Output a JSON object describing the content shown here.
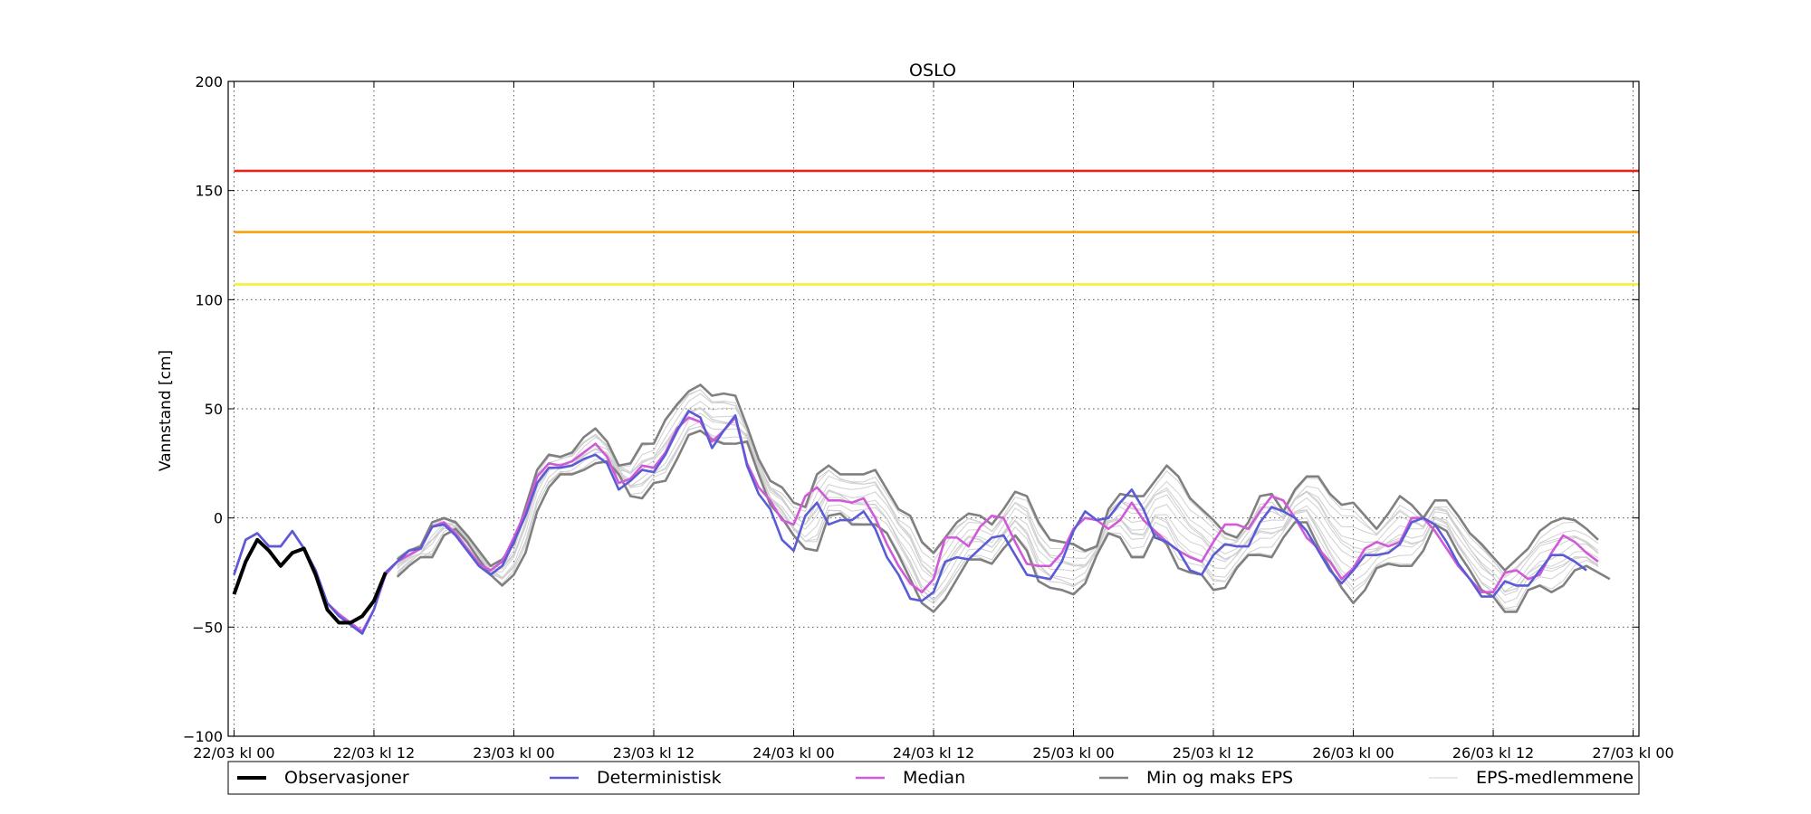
{
  "chart_data": {
    "type": "line",
    "title": "OSLO",
    "ylabel": "Vannstand [cm]",
    "xlabel": "",
    "ylim": [
      -100,
      200
    ],
    "xlim": [
      -0.5,
      120.5
    ],
    "x_unit": "hours since 22/03 kl 00",
    "yticks": [
      200,
      150,
      100,
      50,
      0,
      -50,
      -100
    ],
    "ytick_labels": [
      "200",
      "150",
      "100",
      "50",
      "0",
      "−50",
      "−100"
    ],
    "xticks": [
      0,
      12,
      24,
      36,
      48,
      60,
      72,
      84,
      96,
      108,
      120
    ],
    "xtick_labels": [
      "22/03 kl 00",
      "22/03 kl 12",
      "23/03 kl 00",
      "23/03 kl 12",
      "24/03 kl 00",
      "24/03 kl 12",
      "25/03 kl 00",
      "25/03 kl 12",
      "26/03 kl 00",
      "26/03 kl 12",
      "27/03 kl 00"
    ],
    "grid": true,
    "legend_position": "bottom",
    "thresholds": [
      {
        "value": 159,
        "color": "#e8231e"
      },
      {
        "value": 131,
        "color": "#f5a00c"
      },
      {
        "value": 107,
        "color": "#f5f032"
      }
    ],
    "series": [
      {
        "name": "Observasjoner",
        "color": "#000000",
        "x_start": 0,
        "values": [
          -35,
          -20,
          -10,
          -15,
          -22,
          -16,
          -14,
          -26,
          -42,
          -48,
          -48,
          -45,
          -38,
          -25
        ]
      },
      {
        "name": "Deterministisk",
        "color": "#5b5bd6",
        "x_start": 0,
        "values": [
          -26,
          -10,
          -7,
          -13,
          -13,
          -6,
          -14,
          -24,
          -39,
          -45,
          -49,
          -53,
          -42,
          -25,
          -20,
          -15,
          -14,
          -4,
          -3,
          -8,
          -15,
          -22,
          -26,
          -22,
          -11,
          1,
          16,
          23,
          23,
          24,
          27,
          29,
          25,
          13,
          17,
          22,
          21,
          29,
          40,
          49,
          46,
          32,
          40,
          47,
          24,
          11,
          4,
          -10,
          -15,
          1,
          7,
          -3,
          -1,
          -1,
          3,
          -5,
          -18,
          -26,
          -37,
          -38,
          -34,
          -20,
          -18,
          -19,
          -14,
          -9,
          -8,
          -17,
          -26,
          -27,
          -28,
          -20,
          -6,
          3,
          -1,
          0,
          7,
          13,
          4,
          -9,
          -11,
          -15,
          -24,
          -26,
          -17,
          -12,
          -13,
          -13,
          -2,
          5,
          3,
          0,
          -6,
          -15,
          -24,
          -30,
          -24,
          -17,
          -17,
          -16,
          -12,
          -2,
          0,
          -3,
          -11,
          -21,
          -28,
          -36,
          -36,
          -29,
          -31,
          -31,
          -24,
          -17,
          -17,
          -20,
          -24
        ]
      },
      {
        "name": "Median",
        "color": "#d05ad8",
        "x_start": 0,
        "values": [
          -26,
          -10,
          -7,
          -13,
          -13,
          -6,
          -14,
          -24,
          -39,
          -44,
          -48,
          -52,
          -42,
          -26,
          -20,
          -17,
          -14,
          -4,
          -2,
          -7,
          -14,
          -21,
          -24,
          -20,
          -9,
          3,
          19,
          25,
          24,
          26,
          30,
          34,
          28,
          16,
          18,
          24,
          23,
          30,
          41,
          46,
          44,
          35,
          40,
          46,
          25,
          14,
          8,
          -1,
          -3,
          10,
          14,
          8,
          8,
          7,
          9,
          0,
          -12,
          -22,
          -30,
          -34,
          -28,
          -9,
          -9,
          -13,
          -4,
          1,
          0,
          -11,
          -21,
          -22,
          -22,
          -16,
          -5,
          0,
          -1,
          -5,
          -1,
          7,
          -1,
          -6,
          -11,
          -15,
          -18,
          -20,
          -11,
          -3,
          -3,
          -5,
          3,
          10,
          8,
          0,
          -9,
          -14,
          -20,
          -28,
          -23,
          -14,
          -11,
          -13,
          -11,
          0,
          0,
          -6,
          -14,
          -22,
          -28,
          -34,
          -34,
          -25,
          -24,
          -28,
          -26,
          -16,
          -8,
          -11,
          -16,
          -20
        ]
      },
      {
        "name": "Min og maks EPS",
        "color": "#808080",
        "x_start": 14,
        "role": "max",
        "values": [
          -19,
          -15,
          -13,
          -2,
          0,
          -2,
          -8,
          -15,
          -22,
          -19,
          -12,
          5,
          22,
          29,
          28,
          30,
          37,
          41,
          35,
          24,
          25,
          34,
          34,
          45,
          52,
          58,
          61,
          56,
          57,
          56,
          42,
          27,
          17,
          14,
          7,
          5,
          20,
          24,
          20,
          20,
          20,
          22,
          13,
          4,
          1,
          -11,
          -16,
          -9,
          -2,
          2,
          1,
          -3,
          4,
          12,
          10,
          -2,
          -10,
          -11,
          -12,
          -15,
          -13,
          4,
          11,
          10,
          10,
          17,
          24,
          19,
          9,
          4,
          -1,
          -7,
          -9,
          -2,
          10,
          11,
          3,
          13,
          19,
          19,
          11,
          6,
          7,
          1,
          -5,
          2,
          10,
          6,
          0,
          8,
          8,
          1,
          -7,
          -12,
          -18,
          -24,
          -19,
          -14,
          -6,
          -2,
          0,
          -1,
          -5,
          -10
        ]
      },
      {
        "name": "Min og maks EPS",
        "color": "#808080",
        "x_start": 14,
        "role": "min",
        "values": [
          -27,
          -22,
          -18,
          -18,
          -8,
          -5,
          -11,
          -19,
          -26,
          -31,
          -26,
          -16,
          3,
          14,
          20,
          20,
          22,
          25,
          26,
          20,
          10,
          9,
          16,
          17,
          27,
          38,
          40,
          36,
          34,
          34,
          35,
          20,
          6,
          0,
          -8,
          -14,
          -15,
          1,
          2,
          -3,
          -3,
          -3,
          -7,
          -17,
          -28,
          -39,
          -43,
          -37,
          -28,
          -19,
          -19,
          -21,
          -14,
          -8,
          -15,
          -29,
          -32,
          -33,
          -35,
          -30,
          -17,
          -7,
          -9,
          -18,
          -18,
          -7,
          -12,
          -23,
          -25,
          -26,
          -33,
          -32,
          -23,
          -17,
          -17,
          -18,
          -9,
          -2,
          -2,
          -13,
          -23,
          -32,
          -39,
          -33,
          -23,
          -21,
          -22,
          -22,
          -15,
          -3,
          -6,
          -16,
          -24,
          -33,
          -36,
          -43,
          -43,
          -33,
          -31,
          -34,
          -31,
          -24,
          -22,
          -25,
          -28
        ]
      }
    ],
    "ensemble_name": "EPS-medlemmene",
    "ensemble_color": "#d0d0d0",
    "legend": [
      {
        "label": "Observasjoner",
        "color": "#000000"
      },
      {
        "label": "Deterministisk",
        "color": "#5b5bd6"
      },
      {
        "label": "Median",
        "color": "#d05ad8"
      },
      {
        "label": "Min og maks EPS",
        "color": "#808080"
      },
      {
        "label": "EPS-medlemmene",
        "color": "#d0d0d0"
      }
    ]
  }
}
